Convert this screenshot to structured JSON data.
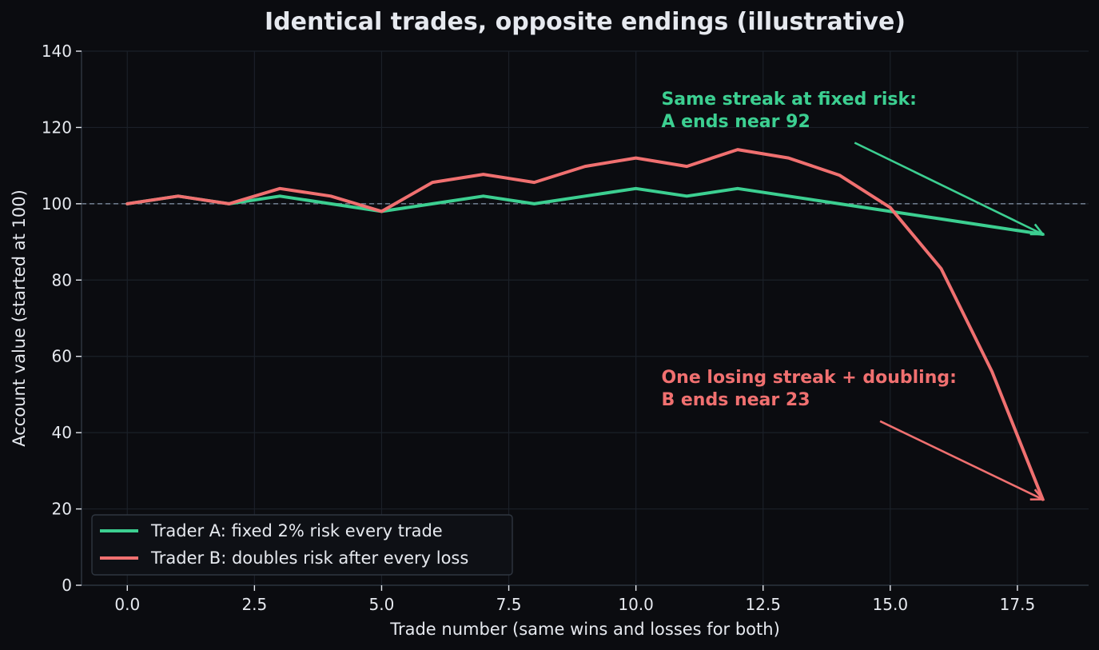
{
  "chart_data": {
    "type": "line",
    "title": "Identical trades, opposite endings (illustrative)",
    "xlabel": "Trade number (same wins and losses for both)",
    "ylabel": "Account value (started at 100)",
    "xlim": [
      -0.9,
      18.9
    ],
    "ylim": [
      0,
      140
    ],
    "xticks": [
      0,
      2.5,
      5,
      7.5,
      10,
      12.5,
      15,
      17.5
    ],
    "xtick_labels": [
      "0.0",
      "2.5",
      "5.0",
      "7.5",
      "10.0",
      "12.5",
      "15.0",
      "17.5"
    ],
    "yticks": [
      0,
      20,
      40,
      60,
      80,
      100,
      120,
      140
    ],
    "ytick_labels": [
      "0",
      "20",
      "40",
      "60",
      "80",
      "100",
      "120",
      "140"
    ],
    "grid": true,
    "reference_line": {
      "y": 100,
      "style": "dashed"
    },
    "x": [
      0,
      1,
      2,
      3,
      4,
      5,
      6,
      7,
      8,
      9,
      10,
      11,
      12,
      13,
      14,
      15,
      16,
      17,
      18
    ],
    "series": [
      {
        "name": "Trader A: fixed 2% risk every trade",
        "color": "#3ccf91",
        "values": [
          100,
          102,
          100,
          102,
          100,
          98,
          100,
          102,
          100,
          102,
          104,
          102,
          104,
          102,
          100,
          98,
          96,
          94,
          92
        ]
      },
      {
        "name": "Trader B: doubles risk after every loss",
        "color": "#f07070",
        "values": [
          100,
          102,
          100,
          104,
          102,
          98,
          105.6,
          107.7,
          105.6,
          109.8,
          112,
          109.8,
          114.2,
          112,
          107.5,
          99,
          83,
          56,
          22.5
        ]
      }
    ],
    "legend": {
      "placement": "lower-left"
    },
    "annotations": [
      {
        "lines": [
          "Same streak at fixed risk:",
          "A ends near 92"
        ],
        "color": "#3ccf91",
        "text_at": [
          10.5,
          126
        ],
        "arrow_from": [
          14.3,
          116
        ],
        "arrow_to": [
          18,
          92
        ]
      },
      {
        "lines": [
          "One losing streak + doubling:",
          "B ends near 23"
        ],
        "color": "#f07070",
        "text_at": [
          10.5,
          53
        ],
        "arrow_from": [
          14.8,
          43
        ],
        "arrow_to": [
          18,
          22.5
        ]
      }
    ],
    "colors": {
      "background": "#0b0c10",
      "grid": "#1b2028",
      "axis": "#2a323c",
      "reference": "#6b7788",
      "text": "#e6e9ef",
      "legend_bg": "#0e1015",
      "legend_border": "#2f3640"
    }
  }
}
